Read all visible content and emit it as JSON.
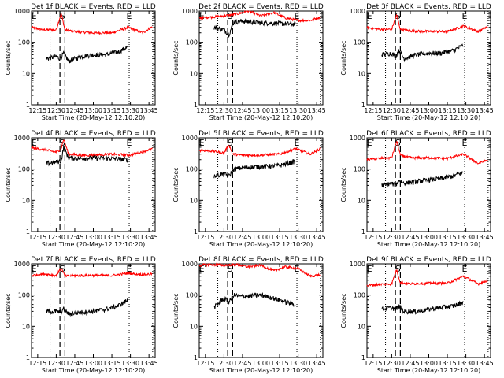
{
  "figure": {
    "panels": [
      {
        "title": "Det 1f BLACK = Events, RED = LLD"
      },
      {
        "title": "Det 2f BLACK = Events, RED = LLD"
      },
      {
        "title": "Det 3f BLACK = Events, RED = LLD"
      },
      {
        "title": "Det 4f BLACK = Events, RED = LLD"
      },
      {
        "title": "Det 5f BLACK = Events, RED = LLD"
      },
      {
        "title": "Det 6f BLACK = Events, RED = LLD"
      },
      {
        "title": "Det 7f BLACK = Events, RED = LLD"
      },
      {
        "title": "Det 8f BLACK = Events, RED = LLD"
      },
      {
        "title": "Det 9f BLACK = Events, RED = LLD"
      }
    ],
    "xlabel": "Start Time (20-May-12 12:10:20)",
    "ylabel": "Counts/sec",
    "x_ticks": [
      "12:15",
      "12:30",
      "12:45",
      "13:00",
      "13:15",
      "13:30",
      "13:45"
    ],
    "y_ticks": [
      "1",
      "10",
      "100",
      "1000"
    ],
    "markers": {
      "start": "E",
      "saa": "S",
      "end": "E"
    }
  },
  "chart_data": {
    "type": "line",
    "layout": "3x3 grid",
    "x_axis": {
      "units": "UT time",
      "ticks": [
        "12:15",
        "12:30",
        "12:45",
        "13:00",
        "13:15",
        "13:30",
        "13:45"
      ],
      "range": [
        "12:10",
        "13:50"
      ]
    },
    "y_axis": {
      "label": "Counts/sec",
      "scale": "log",
      "range": [
        1,
        1000
      ],
      "ticks": [
        1,
        10,
        100,
        1000
      ]
    },
    "colors": {
      "events": "#000000",
      "lld": "#ff0000"
    },
    "annotations": {
      "dotted_lines": [
        "12:25",
        "13:29",
        "13:48"
      ],
      "dashed_lines": [
        "12:33",
        "12:37"
      ],
      "letters": [
        {
          "text": "E",
          "at": "12:12"
        },
        {
          "text": "S",
          "at": "12:35"
        },
        {
          "text": "E",
          "at": "13:29"
        }
      ]
    },
    "panels": [
      {
        "title": "Det 1f BLACK = Events, RED = LLD",
        "events": {
          "x": [
            "12:22",
            "12:30",
            "12:33",
            "12:36",
            "12:40",
            "12:50",
            "13:00",
            "13:10",
            "13:20",
            "13:28"
          ],
          "y": [
            30,
            35,
            30,
            45,
            25,
            35,
            40,
            40,
            50,
            70
          ]
        },
        "lld": {
          "x": [
            "12:10",
            "12:20",
            "12:30",
            "12:34",
            "12:37",
            "12:45",
            "13:00",
            "13:15",
            "13:28",
            "13:40",
            "13:48"
          ],
          "y": [
            300,
            250,
            250,
            850,
            250,
            220,
            200,
            200,
            300,
            200,
            320
          ]
        }
      },
      {
        "title": "Det 2f BLACK = Events, RED = LLD",
        "events": {
          "x": [
            "12:22",
            "12:30",
            "12:34",
            "12:38",
            "12:45",
            "13:00",
            "13:15",
            "13:28"
          ],
          "y": [
            300,
            250,
            180,
            450,
            470,
            420,
            400,
            380
          ]
        },
        "lld": {
          "x": [
            "12:10",
            "12:22",
            "12:30",
            "12:40",
            "12:50",
            "13:00",
            "13:10",
            "13:20",
            "13:30",
            "13:40",
            "13:48"
          ],
          "y": [
            600,
            650,
            700,
            800,
            1000,
            700,
            900,
            600,
            500,
            500,
            650
          ]
        }
      },
      {
        "title": "Det 3f BLACK = Events, RED = LLD",
        "events": {
          "x": [
            "12:22",
            "12:30",
            "12:33",
            "12:36",
            "12:40",
            "12:50",
            "13:00",
            "13:10",
            "13:20",
            "13:28"
          ],
          "y": [
            40,
            45,
            35,
            55,
            30,
            40,
            45,
            45,
            55,
            80
          ]
        },
        "lld": {
          "x": [
            "12:10",
            "12:20",
            "12:30",
            "12:34",
            "12:37",
            "12:45",
            "13:00",
            "13:15",
            "13:28",
            "13:40",
            "13:48"
          ],
          "y": [
            300,
            260,
            260,
            750,
            260,
            230,
            220,
            220,
            330,
            220,
            320
          ]
        }
      },
      {
        "title": "Det 4f BLACK = Events, RED = LLD",
        "events": {
          "x": [
            "12:22",
            "12:30",
            "12:34",
            "12:36",
            "12:40",
            "12:50",
            "13:00",
            "13:15",
            "13:28"
          ],
          "y": [
            150,
            170,
            180,
            500,
            230,
            220,
            230,
            220,
            200
          ]
        },
        "lld": {
          "x": [
            "12:10",
            "12:20",
            "12:30",
            "12:34",
            "12:36",
            "12:40",
            "12:50",
            "13:00",
            "13:15",
            "13:30",
            "13:48"
          ],
          "y": [
            480,
            420,
            350,
            450,
            900,
            300,
            280,
            280,
            300,
            280,
            450
          ]
        }
      },
      {
        "title": "Det 5f BLACK = Events, RED = LLD",
        "events": {
          "x": [
            "12:22",
            "12:30",
            "12:34",
            "12:38",
            "12:45",
            "13:00",
            "13:15",
            "13:28"
          ],
          "y": [
            60,
            70,
            60,
            100,
            110,
            120,
            130,
            180
          ]
        },
        "lld": {
          "x": [
            "12:10",
            "12:20",
            "12:30",
            "12:34",
            "12:37",
            "12:45",
            "13:00",
            "13:15",
            "13:28",
            "13:40",
            "13:48"
          ],
          "y": [
            400,
            380,
            330,
            600,
            300,
            280,
            280,
            300,
            450,
            300,
            450
          ]
        }
      },
      {
        "title": "Det 6f BLACK = Events, RED = LLD",
        "events": {
          "x": [
            "12:22",
            "12:30",
            "12:33",
            "12:36",
            "12:40",
            "12:50",
            "13:00",
            "13:10",
            "13:20",
            "13:28"
          ],
          "y": [
            30,
            35,
            30,
            45,
            35,
            40,
            45,
            50,
            60,
            80
          ]
        },
        "lld": {
          "x": [
            "12:10",
            "12:20",
            "12:30",
            "12:34",
            "12:37",
            "12:45",
            "13:00",
            "13:15",
            "13:28",
            "13:40",
            "13:48"
          ],
          "y": [
            200,
            220,
            230,
            800,
            280,
            230,
            230,
            220,
            300,
            150,
            200
          ]
        }
      },
      {
        "title": "Det 7f BLACK = Events, RED = LLD",
        "events": {
          "x": [
            "12:22",
            "12:30",
            "12:33",
            "12:36",
            "12:40",
            "12:50",
            "13:00",
            "13:10",
            "13:20",
            "13:28"
          ],
          "y": [
            30,
            30,
            28,
            35,
            25,
            28,
            30,
            35,
            45,
            70
          ]
        },
        "lld": {
          "x": [
            "12:10",
            "12:20",
            "12:30",
            "12:34",
            "12:37",
            "12:45",
            "13:00",
            "13:15",
            "13:28",
            "13:40",
            "13:48"
          ],
          "y": [
            420,
            480,
            420,
            750,
            400,
            420,
            430,
            420,
            500,
            450,
            480
          ]
        }
      },
      {
        "title": "Det 8f BLACK = Events, RED = LLD",
        "events": {
          "x": [
            "12:22",
            "12:30",
            "12:34",
            "12:38",
            "12:45",
            "13:00",
            "13:10",
            "13:20",
            "13:28"
          ],
          "y": [
            40,
            80,
            60,
            100,
            90,
            100,
            80,
            60,
            50
          ]
        },
        "lld": {
          "x": [
            "12:10",
            "12:20",
            "12:30",
            "12:40",
            "12:50",
            "13:00",
            "13:10",
            "13:20",
            "13:30",
            "13:40",
            "13:48"
          ],
          "y": [
            900,
            950,
            900,
            950,
            800,
            900,
            600,
            800,
            700,
            400,
            450
          ]
        }
      },
      {
        "title": "Det 9f BLACK = Events, RED = LLD",
        "events": {
          "x": [
            "12:22",
            "12:30",
            "12:33",
            "12:36",
            "12:40",
            "12:50",
            "13:00",
            "13:10",
            "13:20",
            "13:28"
          ],
          "y": [
            35,
            40,
            35,
            45,
            30,
            30,
            35,
            40,
            45,
            60
          ]
        },
        "lld": {
          "x": [
            "12:10",
            "12:20",
            "12:30",
            "12:34",
            "12:37",
            "12:45",
            "13:00",
            "13:15",
            "13:28",
            "13:40",
            "13:48"
          ],
          "y": [
            200,
            220,
            230,
            650,
            250,
            230,
            240,
            240,
            400,
            230,
            300
          ]
        }
      }
    ]
  }
}
